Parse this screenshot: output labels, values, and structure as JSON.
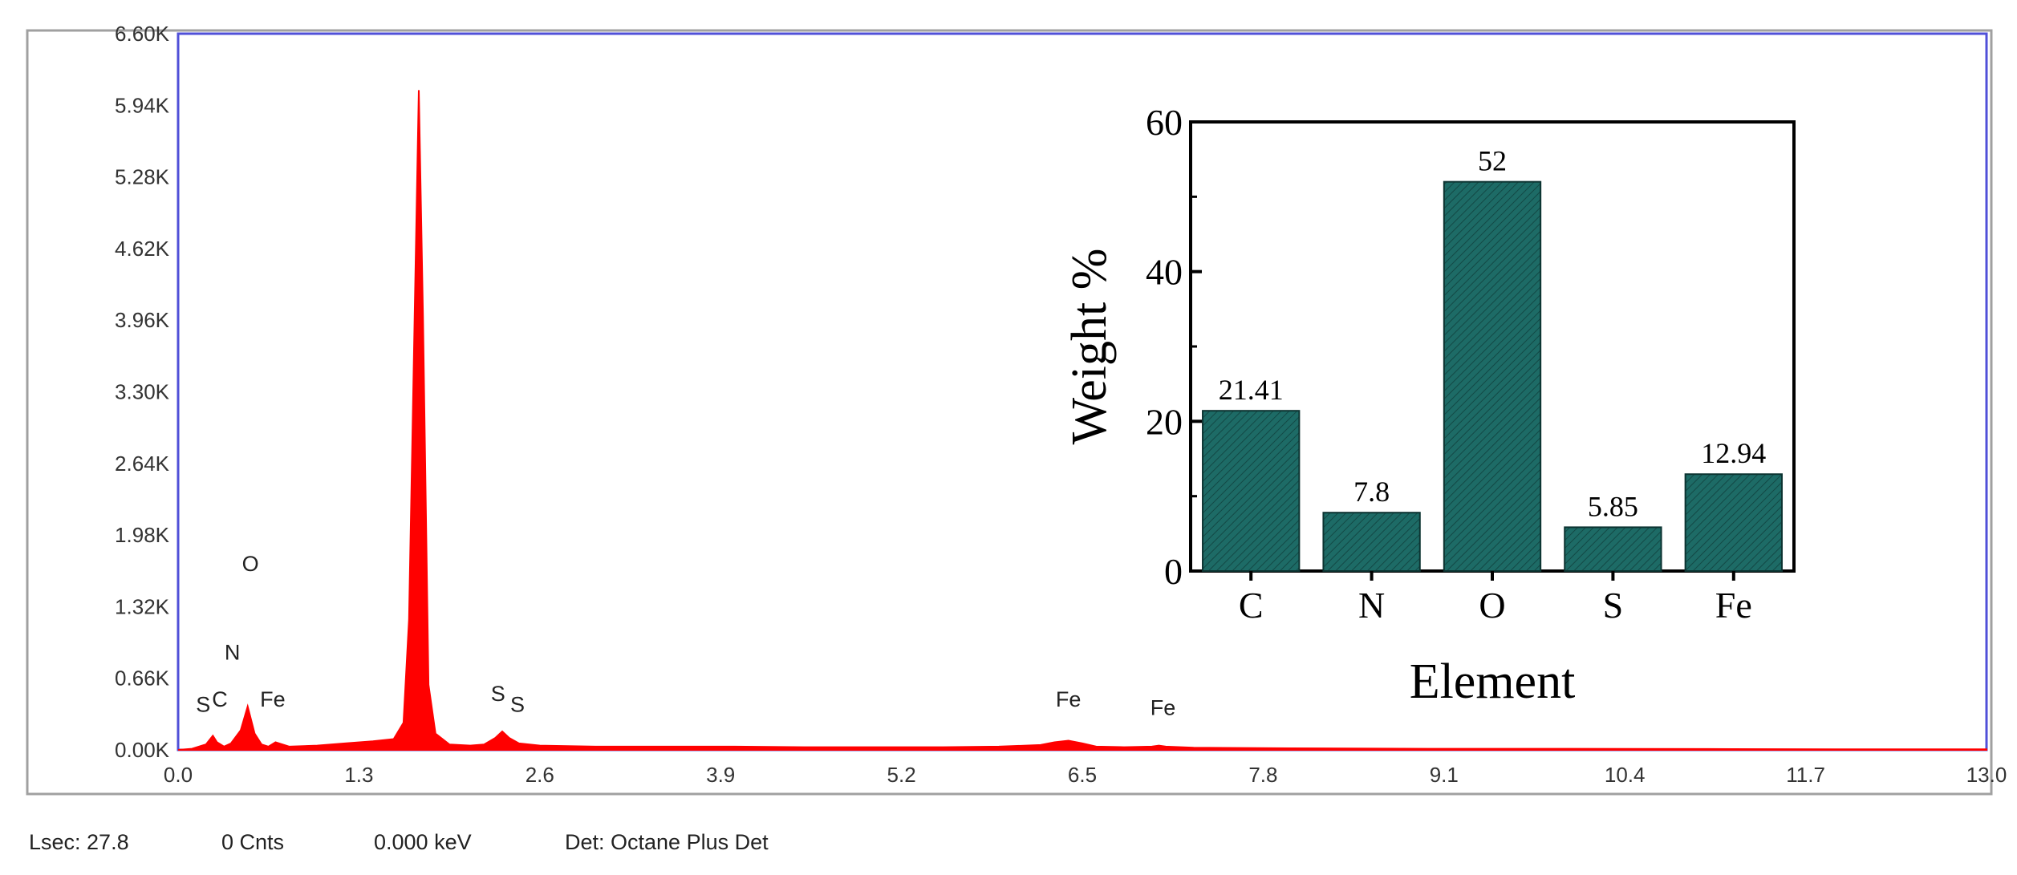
{
  "chart_data": [
    {
      "type": "area",
      "title": "",
      "xlabel": "",
      "ylabel": "",
      "xlim": [
        0,
        13.0
      ],
      "ylim": [
        0,
        6.6
      ],
      "x_ticks": [
        "0.0",
        "1.3",
        "2.6",
        "3.9",
        "5.2",
        "6.5",
        "7.8",
        "9.1",
        "10.4",
        "11.7",
        "13.0"
      ],
      "y_ticks": [
        "0.00K",
        "0.66K",
        "1.32K",
        "1.98K",
        "2.64K",
        "3.30K",
        "3.96K",
        "4.62K",
        "5.28K",
        "5.94K",
        "6.60K"
      ],
      "color": "#ff0000",
      "series": [
        {
          "x": [
            0,
            0.1,
            0.2,
            0.25,
            0.28,
            0.33,
            0.38,
            0.45,
            0.5,
            0.55,
            0.6,
            0.65,
            0.7,
            0.8,
            1.0,
            1.2,
            1.4,
            1.55,
            1.62,
            1.66,
            1.7,
            1.73,
            1.76,
            1.8,
            1.85,
            1.95,
            2.1,
            2.2,
            2.28,
            2.33,
            2.38,
            2.45,
            2.6,
            3.0,
            3.5,
            4.0,
            4.5,
            5.0,
            5.5,
            5.9,
            6.2,
            6.3,
            6.4,
            6.5,
            6.6,
            6.8,
            7.0,
            7.05,
            7.1,
            7.3,
            8.0,
            9.0,
            10.0,
            11.0,
            12.0,
            13.0
          ],
          "values": [
            0,
            0.01,
            0.05,
            0.13,
            0.07,
            0.03,
            0.06,
            0.18,
            0.4,
            0.15,
            0.05,
            0.03,
            0.07,
            0.03,
            0.04,
            0.06,
            0.08,
            0.1,
            0.25,
            1.2,
            4.0,
            6.08,
            4.0,
            0.6,
            0.15,
            0.05,
            0.04,
            0.05,
            0.11,
            0.17,
            0.11,
            0.06,
            0.04,
            0.03,
            0.03,
            0.03,
            0.025,
            0.025,
            0.025,
            0.03,
            0.045,
            0.07,
            0.085,
            0.06,
            0.03,
            0.025,
            0.03,
            0.04,
            0.03,
            0.02,
            0.015,
            0.01,
            0.01,
            0.008,
            0.005,
            0.005
          ]
        }
      ],
      "peak_labels": [
        {
          "text": "O",
          "x": 0.52,
          "y": 1.65
        },
        {
          "text": "N",
          "x": 0.39,
          "y": 0.83
        },
        {
          "text": "C",
          "x": 0.3,
          "y": 0.4
        },
        {
          "text": "S",
          "x": 0.18,
          "y": 0.35
        },
        {
          "text": "Fe",
          "x": 0.68,
          "y": 0.4
        },
        {
          "text": "S",
          "x": 2.3,
          "y": 0.45
        },
        {
          "text": "S",
          "x": 2.44,
          "y": 0.35
        },
        {
          "text": "Fe",
          "x": 6.4,
          "y": 0.4
        },
        {
          "text": "Fe",
          "x": 7.08,
          "y": 0.32
        }
      ],
      "status": {
        "lsec": "Lsec: 27.8",
        "counts": "0 Cnts",
        "energy": "0.000 keV",
        "detector": "Det: Octane Plus Det"
      },
      "colors": {
        "frame": "#5050d8",
        "outer": "#a0a0a0",
        "spectrum": "#ff0000"
      }
    },
    {
      "type": "bar",
      "title": "",
      "xlabel": "Element",
      "ylabel": "Weight %",
      "ylim": [
        0,
        60
      ],
      "y_ticks": [
        "0",
        "20",
        "40",
        "60"
      ],
      "categories": [
        "C",
        "N",
        "O",
        "S",
        "Fe"
      ],
      "values": [
        21.41,
        7.8,
        52,
        5.85,
        12.94
      ],
      "value_labels": [
        "21.41",
        "7.8",
        "52",
        "5.85",
        "12.94"
      ],
      "bar_color": "#1d6b66"
    }
  ]
}
